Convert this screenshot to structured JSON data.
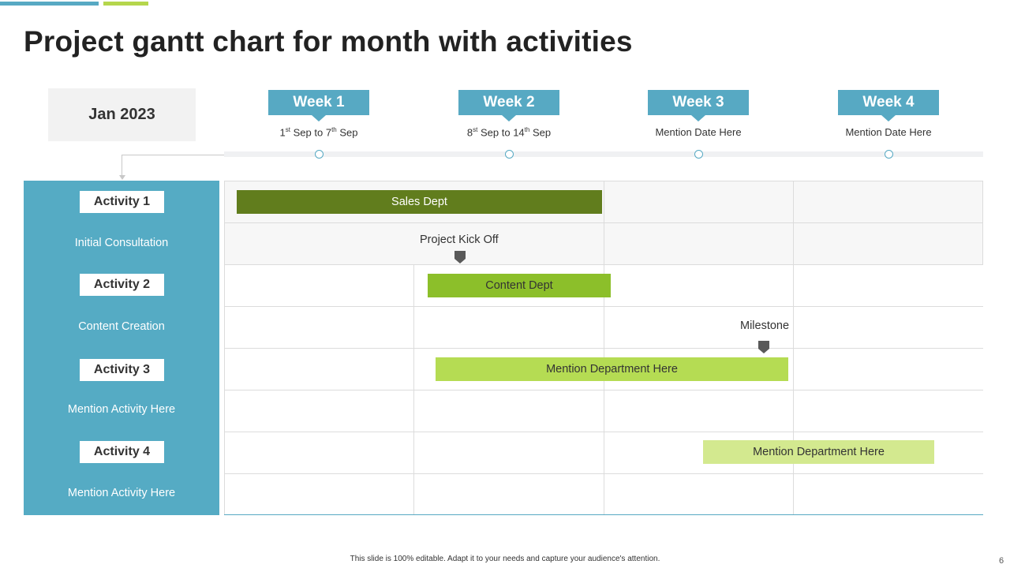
{
  "title": "Project gantt chart for month with activities",
  "month": "Jan 2023",
  "colors": {
    "accent_blue": "#57a9c3",
    "accent_green": "#b5d64c",
    "sidebar": "#55abc4",
    "bar_dark_green": "#617d1d",
    "bar_green": "#8cbf2a",
    "bar_light_green": "#b5dc53",
    "bar_pale_green": "#d3e98f",
    "marker": "#595959"
  },
  "weeks": [
    {
      "label": "Week 1",
      "start_day": "1",
      "start_sup": "st",
      "start_month": "Sep",
      "to": "to",
      "end_day": "7",
      "end_sup": "th",
      "end_month": "Sep"
    },
    {
      "label": "Week 2",
      "start_day": "8",
      "start_sup": "st",
      "start_month": "Sep",
      "to": "to",
      "end_day": "14",
      "end_sup": "th",
      "end_month": "Sep"
    },
    {
      "label": "Week 3",
      "date": "Mention Date Here"
    },
    {
      "label": "Week 4",
      "date": "Mention Date Here"
    }
  ],
  "activities": [
    {
      "tag": "Activity 1",
      "description": "Initial Consultation"
    },
    {
      "tag": "Activity 2",
      "description": "Content Creation"
    },
    {
      "tag": "Activity 3",
      "description": "Mention Activity Here"
    },
    {
      "tag": "Activity 4",
      "description": "Mention Activity Here"
    }
  ],
  "bars": [
    {
      "label": "Sales Dept",
      "text_color": "#ffffff"
    },
    {
      "label": "Content Dept",
      "text_color": "#333333"
    },
    {
      "label": "Mention  Department Here",
      "text_color": "#333333"
    },
    {
      "label": "Mention  Department Here",
      "text_color": "#333333"
    }
  ],
  "markers": [
    {
      "label": "Project Kick Off"
    },
    {
      "label": "Milestone"
    }
  ],
  "footer": "This slide is 100% editable.  Adapt it to your needs and capture your audience's attention.",
  "page_number": "6"
}
